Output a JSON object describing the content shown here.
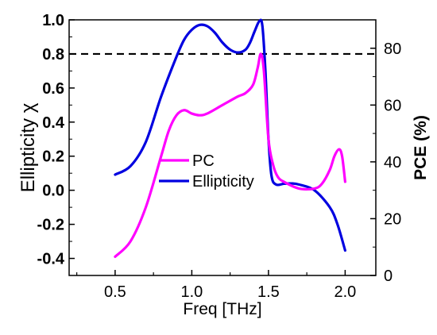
{
  "chart_data": {
    "type": "line",
    "xlabel": "Freq [THz]",
    "ylabel_left": "Ellipticity χ",
    "ylabel_right": "PCE (%)",
    "x_ticks": [
      "0.5",
      "1.0",
      "1.5",
      "2.0"
    ],
    "y_left_ticks": [
      "-0.4",
      "-0.2",
      "0.0",
      "0.2",
      "0.4",
      "0.6",
      "0.8",
      "1.0"
    ],
    "y_right_ticks": [
      "0",
      "20",
      "40",
      "60",
      "80"
    ],
    "xlim": [
      0.2,
      2.2
    ],
    "ylim_left": [
      -0.5,
      1.0
    ],
    "ylim_right": [
      0,
      90
    ],
    "reference_line": {
      "axis": "left",
      "y": 0.8,
      "style": "dashed",
      "color": "#000000"
    },
    "legend": {
      "placement": "center",
      "entries": [
        "PC",
        "Ellipticity"
      ]
    },
    "series": [
      {
        "name": "PC",
        "axis": "left",
        "color": "#ff00ff",
        "x": [
          0.5,
          0.6,
          0.7,
          0.8,
          0.85,
          0.9,
          0.95,
          1.0,
          1.05,
          1.1,
          1.2,
          1.3,
          1.35,
          1.4,
          1.43,
          1.45,
          1.47,
          1.5,
          1.53,
          1.56,
          1.6,
          1.7,
          1.8,
          1.85,
          1.9,
          1.93,
          1.96,
          1.98,
          2.0
        ],
        "y": [
          -0.39,
          -0.3,
          -0.1,
          0.2,
          0.35,
          0.44,
          0.47,
          0.45,
          0.44,
          0.45,
          0.5,
          0.55,
          0.57,
          0.62,
          0.72,
          0.8,
          0.7,
          0.3,
          0.15,
          0.08,
          0.05,
          0.01,
          0.01,
          0.04,
          0.12,
          0.2,
          0.24,
          0.2,
          0.05
        ]
      },
      {
        "name": "Ellipticity",
        "axis": "right",
        "color": "#0000e0",
        "x": [
          0.5,
          0.6,
          0.7,
          0.8,
          0.9,
          0.95,
          1.0,
          1.05,
          1.1,
          1.15,
          1.2,
          1.25,
          1.3,
          1.35,
          1.38,
          1.41,
          1.44,
          1.46,
          1.48,
          1.5,
          1.52,
          1.55,
          1.6,
          1.65,
          1.7,
          1.8,
          1.9,
          1.95,
          2.0
        ],
        "y": [
          35.5,
          38.5,
          47,
          63,
          77,
          83,
          86.5,
          88.2,
          87.8,
          85.5,
          82,
          79.5,
          78.5,
          79.5,
          82,
          86,
          89.5,
          88,
          72,
          48,
          35,
          32,
          32.3,
          32.4,
          32,
          30,
          24,
          18,
          8.8
        ]
      }
    ]
  }
}
